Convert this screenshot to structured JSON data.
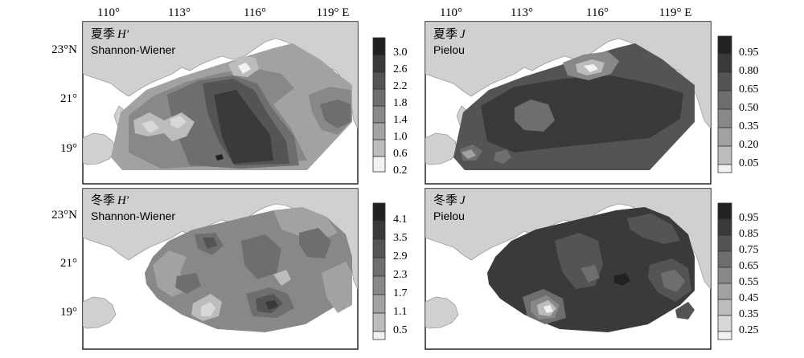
{
  "lon_ticks": [
    "110°",
    "113°",
    "116°",
    "119° E"
  ],
  "lat_ticks": [
    "23°N",
    "21°",
    "19°"
  ],
  "panels": [
    {
      "id": "summer-h",
      "season": "夏季",
      "index": "H′",
      "index_name": "Shannon-Wiener",
      "legend": [
        "3.0",
        "2.6",
        "2.2",
        "1.8",
        "1.4",
        "1.0",
        "0.6",
        "0.2"
      ]
    },
    {
      "id": "summer-j",
      "season": "夏季",
      "index": "J",
      "index_name": "Pielou",
      "legend": [
        "0.95",
        "0.80",
        "0.65",
        "0.50",
        "0.35",
        "0.20",
        "0.05"
      ]
    },
    {
      "id": "winter-h",
      "season": "冬季",
      "index": "H′",
      "index_name": "Shannon-Wiener",
      "legend": [
        "4.1",
        "3.5",
        "2.9",
        "2.3",
        "1.7",
        "1.1",
        "0.5"
      ]
    },
    {
      "id": "winter-j",
      "season": "冬季",
      "index": "J",
      "index_name": "Pielou",
      "legend": [
        "0.95",
        "0.85",
        "0.75",
        "0.65",
        "0.55",
        "0.45",
        "0.35",
        "0.25"
      ]
    }
  ],
  "colors": {
    "land": "#d0d0d0",
    "coast": "#9a9a9a",
    "shades": [
      "#f2f2f2",
      "#d7d7d7",
      "#bcbcbc",
      "#a2a2a2",
      "#888888",
      "#6e6e6e",
      "#545454",
      "#3a3a3a",
      "#222222"
    ]
  }
}
